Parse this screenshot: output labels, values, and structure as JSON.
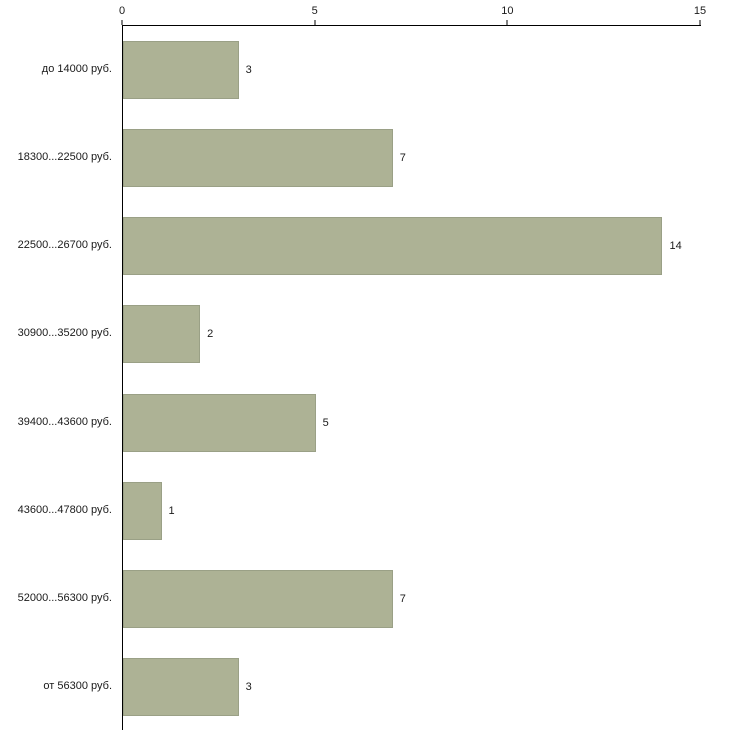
{
  "chart_data": {
    "type": "bar",
    "orientation": "horizontal",
    "title": "",
    "xlabel": "",
    "ylabel": "",
    "categories": [
      "до 14000 руб.",
      "18300...22500 руб.",
      "22500...26700 руб.",
      "30900...35200 руб.",
      "39400...43600 руб.",
      "43600...47800 руб.",
      "52000...56300 руб.",
      "от 56300 руб."
    ],
    "values": [
      3,
      7,
      14,
      2,
      5,
      1,
      7,
      3
    ],
    "xlim": [
      0,
      15
    ],
    "x_ticks": [
      "0",
      "5",
      "10",
      "15"
    ],
    "grid": false,
    "legend": false,
    "axis_position": "top",
    "colors": {
      "bar_fill": "#adb295",
      "bar_border": "#9aa086",
      "axis": "#000000",
      "text": "#1a1a1a",
      "background": "#ffffff"
    }
  }
}
